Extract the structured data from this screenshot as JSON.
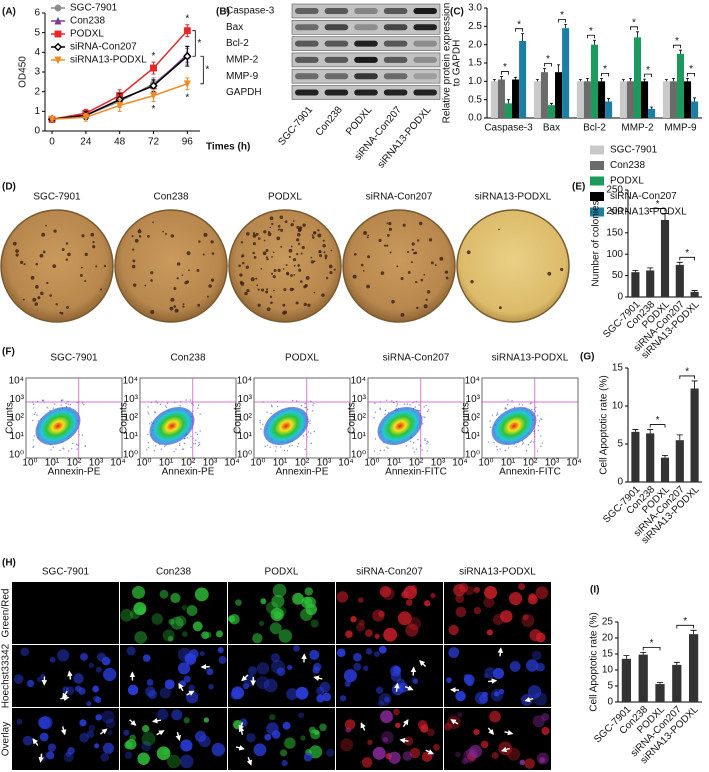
{
  "panel_labels": [
    "(A)",
    "(B)",
    "(C)",
    "(D)",
    "(E)",
    "(F)",
    "(G)",
    "(H)",
    "(I)"
  ],
  "blot": {
    "rows": [
      "Caspase-3",
      "Bax",
      "Bcl-2",
      "MMP-2",
      "MMP-9",
      "GAPDH"
    ],
    "columns": [
      "SGC-7901",
      "Con238",
      "PODXL",
      "siRNA-Con207",
      "siRNA13-PODXL"
    ]
  },
  "colony_dishes": {
    "labels": [
      "SGC-7901",
      "Con238",
      "PODXL",
      "siRNA-Con207",
      "siRNA13-PODXL"
    ]
  },
  "flow": {
    "columns": [
      "SGC-7901",
      "Con238",
      "PODXL",
      "siRNA-Con207",
      "siRNA13-PODXL"
    ],
    "ylabel": "Counts",
    "xlabels": [
      "Annexin-PE",
      "Annexin-PE",
      "Annexin-PE",
      "Annexin-FITC",
      "Annexin-FITC"
    ],
    "ticks": [
      "10⁰",
      "10¹",
      "10²",
      "10³",
      "10⁴"
    ]
  },
  "microscopy": {
    "columns": [
      "SGC-7901",
      "Con238",
      "PODXL",
      "siRNA-Con207",
      "siRNA13-PODXL"
    ],
    "rows": [
      "Green/Red",
      "Hoechst33342",
      "Overlay"
    ]
  },
  "chart_data": [
    {
      "type": "line",
      "ylabel": "OD450",
      "xlabel": "Times (h)",
      "x": [
        0,
        24,
        48,
        72,
        96
      ],
      "xlim": [
        -5,
        105
      ],
      "xticks": [
        0,
        24,
        48,
        72,
        96
      ],
      "ylim": [
        0,
        6
      ],
      "yticks": [
        0,
        1,
        2,
        3,
        4,
        5,
        6
      ],
      "legend": "upper left",
      "series": [
        {
          "name": "SGC-7901",
          "color": "#8c8c8c",
          "marker": "circle",
          "values": [
            0.6,
            0.8,
            1.5,
            2.4,
            3.8
          ],
          "errors": [
            0.1,
            0.2,
            0.3,
            0.3,
            0.4
          ]
        },
        {
          "name": "Con238",
          "color": "#7b3a96",
          "marker": "triangle",
          "values": [
            0.6,
            0.8,
            1.6,
            2.3,
            3.9
          ],
          "errors": [
            0.1,
            0.2,
            0.3,
            0.3,
            0.4
          ]
        },
        {
          "name": "PODXL",
          "color": "#e8262a",
          "marker": "square",
          "values": [
            0.6,
            0.9,
            1.8,
            3.2,
            5.1
          ],
          "errors": [
            0.1,
            0.2,
            0.3,
            0.3,
            0.3
          ]
        },
        {
          "name": "siRNA-Con207",
          "color": "#000000",
          "marker": "diamond",
          "values": [
            0.6,
            0.8,
            1.6,
            2.3,
            3.8
          ],
          "errors": [
            0.1,
            0.2,
            0.3,
            0.3,
            0.5
          ]
        },
        {
          "name": "siRNA13-PODXL",
          "color": "#f08a24",
          "marker": "triangle-down",
          "values": [
            0.6,
            0.7,
            1.3,
            1.8,
            2.4
          ],
          "errors": [
            0.1,
            0.2,
            0.3,
            0.3,
            0.3
          ]
        }
      ],
      "significance": [
        {
          "text": "*",
          "x": 72,
          "series": "PODXL",
          "position": "above"
        },
        {
          "text": "*",
          "x": 72,
          "series": "siRNA13-PODXL",
          "position": "below"
        },
        {
          "text": "*",
          "x": 96,
          "series": "PODXL",
          "position": "above"
        },
        {
          "text": "*",
          "x": 96,
          "series": "siRNA13-PODXL",
          "position": "below"
        },
        {
          "text": "*",
          "x": 96,
          "between": [
            "PODXL",
            "siRNA-Con207"
          ]
        },
        {
          "text": "*",
          "x": 96,
          "between": [
            "siRNA-Con207",
            "siRNA13-PODXL"
          ]
        }
      ]
    },
    {
      "type": "bar",
      "ylabel": [
        "Relative protein expression",
        "to GAPDH"
      ],
      "categories": [
        "Caspase-3",
        "Bax",
        "Bcl-2",
        "MMP-2",
        "MMP-9"
      ],
      "ylim": [
        0,
        3
      ],
      "yticks": [
        {
          "value": 0,
          "label": "0.0"
        },
        0.5,
        {
          "value": 1,
          "label": "1.0"
        },
        1.5,
        {
          "value": 2,
          "label": "2.0"
        },
        2.5,
        {
          "value": 3,
          "label": "3.0"
        }
      ],
      "xlabel_rotation": 0,
      "legend": "below",
      "series": [
        {
          "name": "SGC-7901",
          "color": "#c9c9c9",
          "values": [
            1,
            1,
            1,
            1,
            1
          ],
          "errors": [
            0.05,
            0.05,
            0.05,
            0.05,
            0.05
          ]
        },
        {
          "name": "Con238",
          "color": "#6b6b6b",
          "values": [
            1.05,
            1.25,
            1.0,
            1.0,
            1.0
          ],
          "errors": [
            0.08,
            0.1,
            0.08,
            0.08,
            0.08
          ]
        },
        {
          "name": "PODXL",
          "color": "#1a9a5b",
          "values": [
            0.4,
            0.35,
            2.0,
            2.2,
            1.75
          ],
          "errors": [
            0.1,
            0.05,
            0.12,
            0.15,
            0.1
          ]
        },
        {
          "name": "siRNA-Con207",
          "color": "#000000",
          "values": [
            1.05,
            1.25,
            1.0,
            1.0,
            1.0
          ],
          "errors": [
            0.06,
            0.2,
            0.08,
            0.06,
            0.08
          ]
        },
        {
          "name": "siRNA13-PODXL",
          "color": "#1a7fa3",
          "values": [
            2.1,
            2.45,
            0.45,
            0.25,
            0.45
          ],
          "errors": [
            0.2,
            0.1,
            0.08,
            0.05,
            0.1
          ]
        }
      ],
      "significance": [
        {
          "text": "*",
          "category": "Caspase-3",
          "between": [
            "Con238",
            "PODXL"
          ]
        },
        {
          "text": "*",
          "category": "Caspase-3",
          "between": [
            "siRNA-Con207",
            "siRNA13-PODXL"
          ]
        },
        {
          "text": "*",
          "category": "Bax",
          "between": [
            "Con238",
            "PODXL"
          ]
        },
        {
          "text": "*",
          "category": "Bax",
          "between": [
            "siRNA-Con207",
            "siRNA13-PODXL"
          ]
        },
        {
          "text": "*",
          "category": "Bcl-2",
          "between": [
            "Con238",
            "PODXL"
          ]
        },
        {
          "text": "*",
          "category": "Bcl-2",
          "between": [
            "siRNA-Con207",
            "siRNA13-PODXL"
          ]
        },
        {
          "text": "*",
          "category": "MMP-2",
          "between": [
            "Con238",
            "PODXL"
          ]
        },
        {
          "text": "*",
          "category": "MMP-2",
          "between": [
            "siRNA-Con207",
            "siRNA13-PODXL"
          ]
        },
        {
          "text": "*",
          "category": "MMP-9",
          "between": [
            "Con238",
            "PODXL"
          ]
        },
        {
          "text": "*",
          "category": "MMP-9",
          "between": [
            "siRNA-Con207",
            "siRNA13-PODXL"
          ]
        }
      ]
    },
    {
      "type": "bar",
      "ylabel": "Number of colonies",
      "categories": [
        "SGC-7901",
        "Con238",
        "PODXL",
        "siRNA-Con207",
        "siRNA13-PODXL"
      ],
      "values": [
        58,
        62,
        180,
        75,
        12
      ],
      "errors": [
        4,
        6,
        15,
        6,
        3
      ],
      "color": "#333333",
      "ylim": [
        0,
        250
      ],
      "yticks": [
        0,
        50,
        100,
        150,
        200,
        250
      ],
      "xlabel_rotation": 45,
      "significance": [
        {
          "text": "*",
          "between": [
            "Con238",
            "PODXL"
          ]
        },
        {
          "text": "*",
          "between": [
            "siRNA-Con207",
            "siRNA13-PODXL"
          ]
        }
      ]
    },
    {
      "type": "bar",
      "ylabel": "Cell Apoptotic rate (%)",
      "categories": [
        "SGC-7901",
        "Con238",
        "PODXL",
        "siRNA-Con207",
        "siRNA13-PODXL"
      ],
      "values": [
        6.6,
        6.4,
        3.2,
        5.5,
        12.3
      ],
      "errors": [
        0.3,
        0.5,
        0.3,
        0.7,
        1.0
      ],
      "color": "#333333",
      "ylim": [
        0,
        15
      ],
      "yticks": [
        0,
        5,
        10,
        15
      ],
      "xlabel_rotation": 45,
      "significance": [
        {
          "text": "*",
          "between": [
            "Con238",
            "PODXL"
          ]
        },
        {
          "text": "*",
          "between": [
            "siRNA-Con207",
            "siRNA13-PODXL"
          ]
        }
      ]
    },
    {
      "type": "bar",
      "ylabel": "Cell Apoptotic rate (%)",
      "categories": [
        "SGC-7901",
        "Con238",
        "PODXL",
        "siRNA-Con207",
        "siRNA13-PODXL"
      ],
      "values": [
        13.5,
        14.8,
        5.6,
        11.6,
        21.2
      ],
      "errors": [
        1.0,
        0.7,
        0.5,
        0.8,
        1.2
      ],
      "color": "#333333",
      "ylim": [
        0,
        25
      ],
      "yticks": [
        0,
        5,
        10,
        15,
        20,
        25
      ],
      "xlabel_rotation": 45,
      "significance": [
        {
          "text": "*",
          "between": [
            "Con238",
            "PODXL"
          ]
        },
        {
          "text": "*",
          "between": [
            "siRNA-Con207",
            "siRNA13-PODXL"
          ]
        }
      ]
    }
  ]
}
